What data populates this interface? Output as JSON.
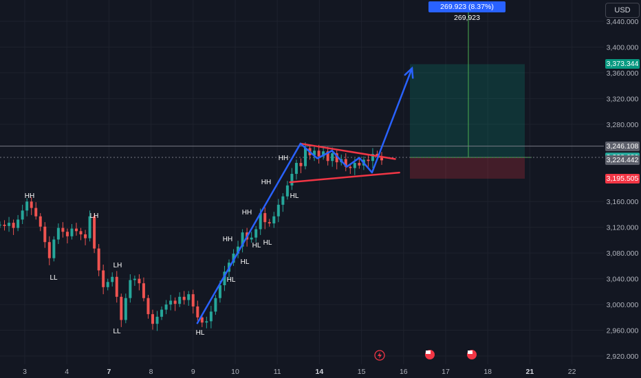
{
  "currency": "USD",
  "measure_label": "269.923 (8.37%) 269,923",
  "price_tags": [
    {
      "key": "target",
      "value": "3,373.344",
      "bg": "#089981"
    },
    {
      "key": "line",
      "value": "3,246.108",
      "bg": "#5d606b"
    },
    {
      "key": "entry",
      "value": "3,228.630",
      "bg": "#26a69a"
    },
    {
      "key": "last",
      "value": "3,224.442",
      "bg": "#5d606b"
    },
    {
      "key": "stop",
      "value": "3,195.505",
      "bg": "#f23645"
    }
  ],
  "y_ticks": [
    "3,440.000",
    "3,400.000",
    "3,360.000",
    "3,320.000",
    "3,280.000",
    "3,160.000",
    "3,120.000",
    "3,080.000",
    "3,040.000",
    "3,000.000",
    "2,960.000",
    "2,920.000"
  ],
  "x_ticks": [
    {
      "label": "3",
      "x": 3,
      "bold": false
    },
    {
      "label": "4",
      "x": 4,
      "bold": false
    },
    {
      "label": "7",
      "x": 5,
      "bold": true
    },
    {
      "label": "8",
      "x": 6,
      "bold": false
    },
    {
      "label": "9",
      "x": 7,
      "bold": false
    },
    {
      "label": "10",
      "x": 8,
      "bold": false
    },
    {
      "label": "11",
      "x": 9,
      "bold": false
    },
    {
      "label": "14",
      "x": 10,
      "bold": true
    },
    {
      "label": "15",
      "x": 11,
      "bold": false
    },
    {
      "label": "16",
      "x": 12,
      "bold": false
    },
    {
      "label": "17",
      "x": 13,
      "bold": false
    },
    {
      "label": "18",
      "x": 14,
      "bold": false
    },
    {
      "label": "21",
      "x": 15,
      "bold": true
    },
    {
      "label": "22",
      "x": 16,
      "bold": false
    }
  ],
  "annotations": [
    "HH",
    "LL",
    "LH",
    "LH",
    "LL",
    "HL",
    "HL",
    "HH",
    "HL",
    "HH",
    "HL",
    "HL",
    "HH",
    "HH",
    "HL"
  ],
  "chart_data": {
    "type": "candlestick",
    "y_range": [
      2910,
      3452
    ],
    "x_range": [
      2.4,
      17.9
    ],
    "colors": {
      "up": "#26a69a",
      "down": "#ef5350",
      "trend": "#2962ff",
      "triangle": "#f23645"
    },
    "key_levels": {
      "target": 3373.344,
      "horizontal_line": 3246.108,
      "entry": 3228.63,
      "last": 3224.442,
      "stop": 3195.505
    },
    "trendlines": [
      {
        "name": "impulse",
        "points": [
          [
            7.1,
            2971
          ],
          [
            9.55,
            3250
          ]
        ]
      },
      {
        "name": "triangle-upper",
        "points": [
          [
            9.55,
            3250
          ],
          [
            11.8,
            3226
          ]
        ]
      },
      {
        "name": "triangle-lower",
        "points": [
          [
            9.3,
            3190
          ],
          [
            11.9,
            3205
          ]
        ]
      },
      {
        "name": "projection",
        "points": [
          [
            9.55,
            3250
          ],
          [
            9.95,
            3227
          ],
          [
            10.3,
            3239
          ],
          [
            10.65,
            3214
          ],
          [
            10.95,
            3228
          ],
          [
            11.25,
            3205
          ],
          [
            12.2,
            3367
          ]
        ]
      }
    ],
    "closes": [
      3124,
      3122,
      3127,
      3119,
      3132,
      3146,
      3160,
      3150,
      3137,
      3121,
      3097,
      3072,
      3101,
      3119,
      3113,
      3106,
      3118,
      3114,
      3109,
      3103,
      3137,
      3087,
      3053,
      3027,
      3035,
      3043,
      3012,
      2976,
      3010,
      3038,
      3040,
      3033,
      3010,
      2985,
      2970,
      2981,
      2992,
      3000,
      3006,
      3001,
      3012,
      3007,
      3016,
      2997,
      2980,
      2972,
      2974,
      2989,
      3010,
      3030,
      3051,
      3065,
      3079,
      3090,
      3112,
      3101,
      3104,
      3117,
      3142,
      3128,
      3126,
      3137,
      3155,
      3168,
      3185,
      3203,
      3220,
      3215,
      3243,
      3232,
      3239,
      3230,
      3238,
      3223,
      3235,
      3221,
      3226,
      3214,
      3212,
      3220,
      3216,
      3225,
      3223,
      3234,
      3230,
      3224
    ],
    "extremes": {
      "high": 3250,
      "low": 2956
    }
  }
}
